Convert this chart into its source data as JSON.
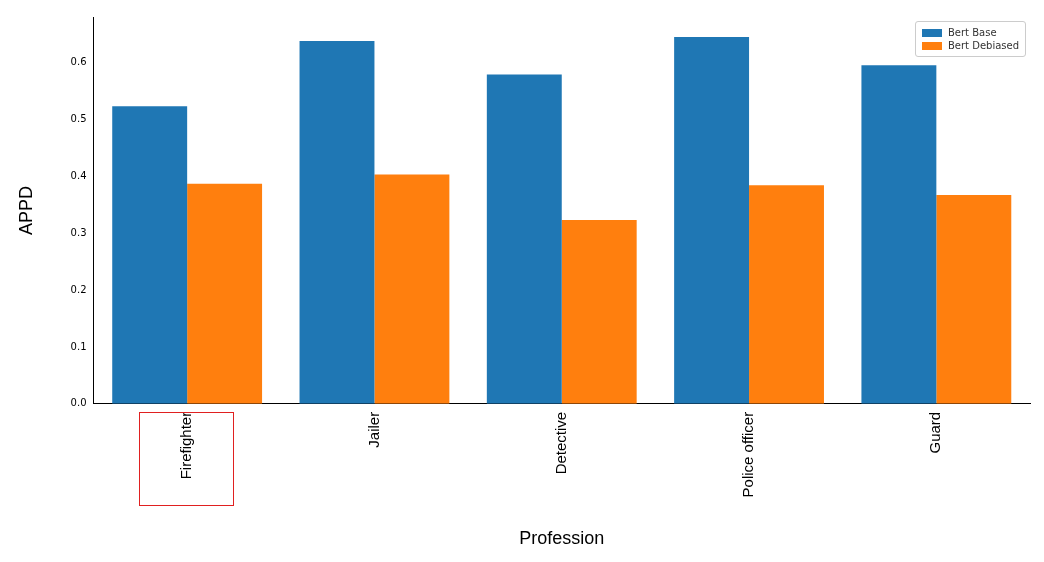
{
  "chart_data": {
    "type": "bar",
    "xlabel": "Profession",
    "ylabel": "APPD",
    "categories": [
      "Firefighter",
      "Jailer",
      "Detective",
      "Police officer",
      "Guard"
    ],
    "series": [
      {
        "name": "Bert Base",
        "color": "#1f77b4",
        "values": [
          0.523,
          0.638,
          0.579,
          0.645,
          0.595
        ]
      },
      {
        "name": "Bert Debiased",
        "color": "#ff7f0e",
        "values": [
          0.387,
          0.403,
          0.323,
          0.384,
          0.367
        ]
      }
    ],
    "ylim": [
      0,
      0.68
    ],
    "yticks": [
      {
        "value": 0,
        "label": "0.0"
      },
      {
        "value": 0.1,
        "label": "0.1"
      },
      {
        "value": 0.2,
        "label": "0.2"
      },
      {
        "value": 0.3,
        "label": "0.3"
      },
      {
        "value": 0.4,
        "label": "0.4"
      },
      {
        "value": 0.5,
        "label": "0.5"
      },
      {
        "value": 0.6,
        "label": "0.6"
      }
    ],
    "grid": false,
    "legend": "top right"
  }
}
